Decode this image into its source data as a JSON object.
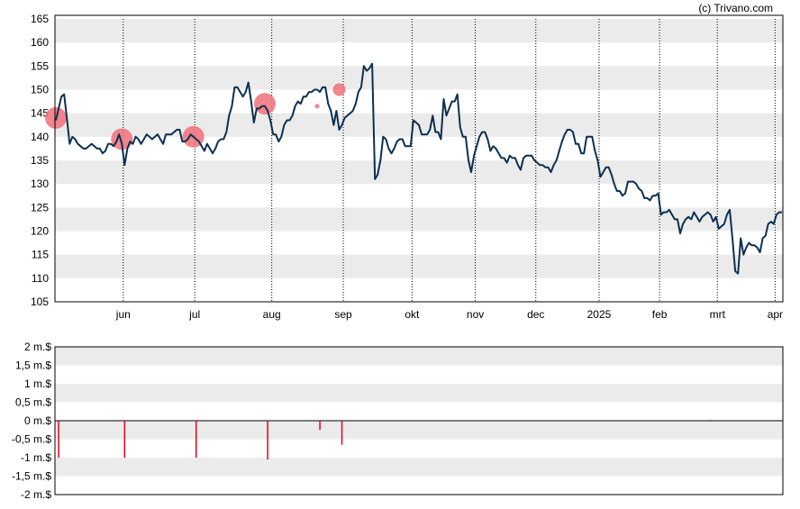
{
  "credit": "(c) Trivano.com",
  "colors": {
    "band": "#ebebeb",
    "line": "#0d3050",
    "marker": "#f0707a",
    "bar": "#e8001c",
    "axis": "#000000"
  },
  "chart_data": [
    {
      "type": "line",
      "title": "",
      "ylim": [
        105,
        165
      ],
      "yticks": [
        105,
        110,
        115,
        120,
        125,
        130,
        135,
        140,
        145,
        150,
        155,
        160,
        165
      ],
      "month_labels": [
        "jun",
        "jul",
        "aug",
        "sep",
        "okt",
        "nov",
        "dec",
        "2025",
        "feb",
        "mrt",
        "apr"
      ],
      "grid": "alternating horizontal bands, dotted vertical month lines",
      "series": [
        {
          "values": [
            143.5,
            146,
            148.5,
            149,
            144,
            138.5,
            140,
            139.5,
            138.5,
            138,
            137.5,
            137.5,
            138,
            138.5,
            138,
            137.5,
            137.5,
            136.5,
            137,
            138.5,
            138.5,
            138,
            139,
            140.5,
            138.5,
            134,
            137.5,
            139,
            138.5,
            140,
            139.5,
            138.5,
            139.5,
            140.5,
            140,
            139.5,
            140,
            140.5,
            139.5,
            138.5,
            140.5,
            140.5,
            140.5,
            141,
            141.5,
            141.5,
            139,
            139,
            139.5,
            140.5,
            140,
            139.5,
            139,
            138,
            137,
            138.5,
            137.5,
            136.5,
            137.5,
            139,
            139.5,
            139.5,
            141,
            144.5,
            146.5,
            150.5,
            150.5,
            149.5,
            148.5,
            149.5,
            151.5,
            147.5,
            143,
            146,
            146,
            146.5,
            146.5,
            145.5,
            143.5,
            140.5,
            140.5,
            139,
            140,
            142.5,
            143.5,
            143.5,
            144.5,
            146.5,
            147.5,
            147,
            148.5,
            148.5,
            149.5,
            149.5,
            150,
            150,
            149.5,
            150.5,
            150.5,
            147,
            145.5,
            142.5,
            145.5,
            141.5,
            142.5,
            144,
            144.5,
            145,
            145.5,
            147,
            149.5,
            150.5,
            155,
            154,
            154.5,
            155.5,
            131,
            132,
            135,
            140,
            139.5,
            137.5,
            136.5,
            137.5,
            139,
            139.5,
            139.5,
            138,
            138,
            138,
            143.5,
            143,
            142.5,
            140.5,
            140.5,
            140.5,
            141.5,
            144.5,
            141,
            141,
            139.5,
            148,
            144.5,
            146,
            147.5,
            147.5,
            149,
            142,
            140,
            140,
            135,
            132.5,
            136,
            138,
            140,
            141,
            141,
            139.5,
            137,
            138,
            137.5,
            136.5,
            135.5,
            135.5,
            134.5,
            136,
            135.5,
            135.5,
            134,
            133,
            135.5,
            136,
            136,
            136,
            135,
            134.5,
            134,
            134,
            133.5,
            133.5,
            132.5,
            134,
            135,
            137,
            139,
            140.5,
            141.5,
            141.5,
            141,
            138.5,
            138.5,
            136.5,
            136.5,
            140,
            140,
            140,
            137,
            135,
            131.5,
            132.5,
            133.5,
            133.5,
            132,
            130,
            128.5,
            128.5,
            127.5,
            128,
            130.5,
            130.5,
            130.5,
            130,
            129,
            128.5,
            127,
            127,
            126.5,
            127.5,
            127.5,
            128,
            123.5,
            124,
            124,
            124.5,
            123.5,
            122.5,
            122.5,
            119.5,
            121.5,
            122.5,
            123,
            122.5,
            124,
            123,
            122,
            123,
            123.5,
            124,
            123.5,
            122,
            123,
            120.5,
            121,
            121.5,
            123.5,
            124.5,
            118.5,
            111.5,
            111,
            118.5,
            115,
            116.5,
            117.5,
            117,
            117,
            116.5,
            115.5,
            118.5,
            119,
            121.5,
            122,
            121.5,
            123.5,
            124,
            124
          ],
          "line_color": "#0d3050"
        }
      ],
      "events": [
        {
          "x_index": 0,
          "y": 144,
          "size": "large"
        },
        {
          "x_index": 24,
          "y": 139.5,
          "size": "large"
        },
        {
          "x_index": 50,
          "y": 140,
          "size": "large"
        },
        {
          "x_index": 76,
          "y": 147,
          "size": "large"
        },
        {
          "x_index": 95,
          "y": 146.5,
          "size": "small"
        },
        {
          "x_index": 103,
          "y": 150,
          "size": "medium"
        }
      ]
    },
    {
      "type": "bar",
      "title": "",
      "ylim": [
        -2,
        2
      ],
      "yticks": [
        "-2 m.$",
        "-1,5 m.$",
        "-1 m.$",
        "-0,5 m.$",
        "0 m.$",
        "0,5 m.$",
        "1 m.$",
        "1,5 m.$",
        "2 m.$"
      ],
      "grid": "alternating horizontal bands",
      "bars": [
        {
          "x_index": 1,
          "value": -1.0
        },
        {
          "x_index": 25,
          "value": -1.0
        },
        {
          "x_index": 51,
          "value": -1.0
        },
        {
          "x_index": 77,
          "value": -1.05
        },
        {
          "x_index": 96,
          "value": -0.25
        },
        {
          "x_index": 104,
          "value": -0.65
        }
      ]
    }
  ]
}
